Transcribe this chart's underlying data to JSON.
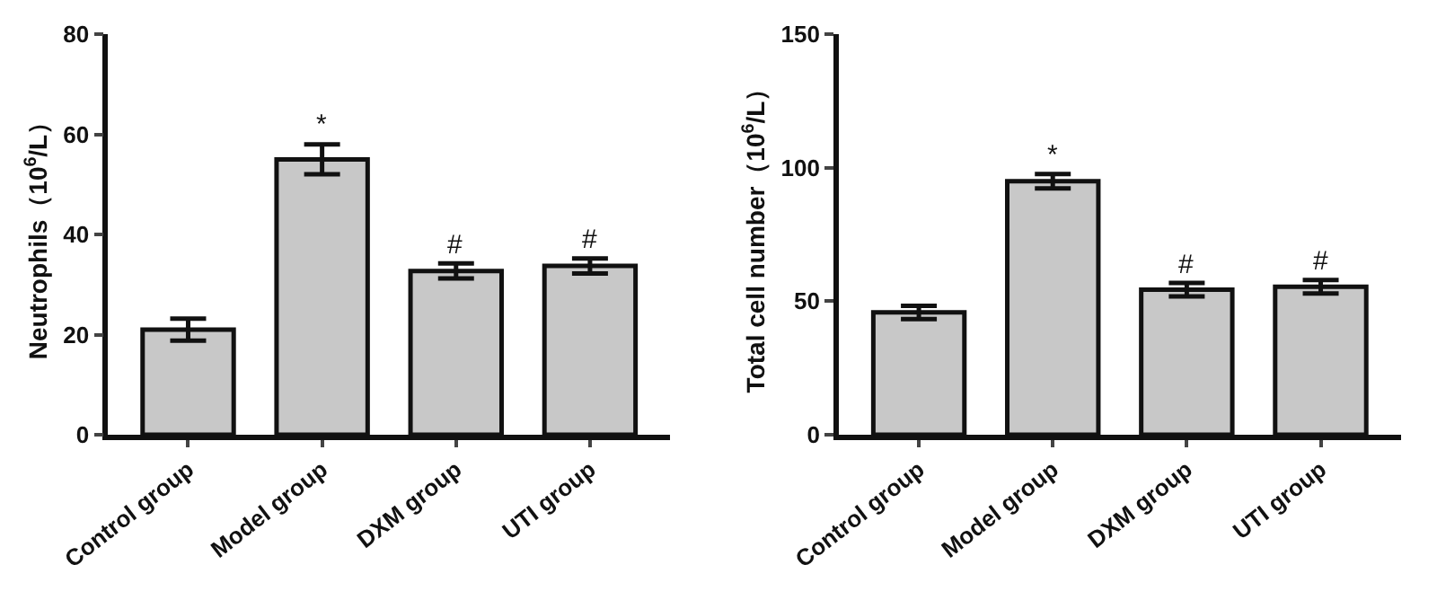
{
  "chart_data": [
    {
      "type": "bar",
      "ylabel": "Neutrophils（10$^{6}$/L）",
      "categories": [
        "Control group",
        "Model group",
        "DXM group",
        "UTI group"
      ],
      "values": [
        21,
        55,
        32.7,
        33.7
      ],
      "errors": [
        2.2,
        3,
        1.5,
        1.5
      ],
      "color": "#c8c8c8",
      "ylim": [
        0,
        80
      ],
      "yticks": [
        0,
        20,
        40,
        60,
        80
      ],
      "annotations": [
        {
          "text": "*",
          "x": "Model group",
          "y": 58
        },
        {
          "text": "#",
          "x": "DXM group",
          "y": 34.2
        },
        {
          "text": "#",
          "x": "UTI group",
          "y": 35.2
        }
      ]
    },
    {
      "type": "bar",
      "ylabel": "Total cell number（10$^{6}$/L）",
      "categories": [
        "Control group",
        "Model group",
        "DXM group",
        "UTI group"
      ],
      "values": [
        45.8,
        94.9,
        54.3,
        55.4
      ],
      "errors": [
        2.5,
        2.7,
        2.5,
        2.5
      ],
      "color": "#c8c8c8",
      "ylim": [
        0,
        150
      ],
      "yticks": [
        0,
        50,
        100,
        150
      ],
      "annotations": [
        {
          "text": "*",
          "x": "Model group",
          "y": 97.6
        },
        {
          "text": "#",
          "x": "DXM group",
          "y": 56.8
        },
        {
          "text": "#",
          "x": "UTI group",
          "y": 57.9
        }
      ]
    }
  ]
}
